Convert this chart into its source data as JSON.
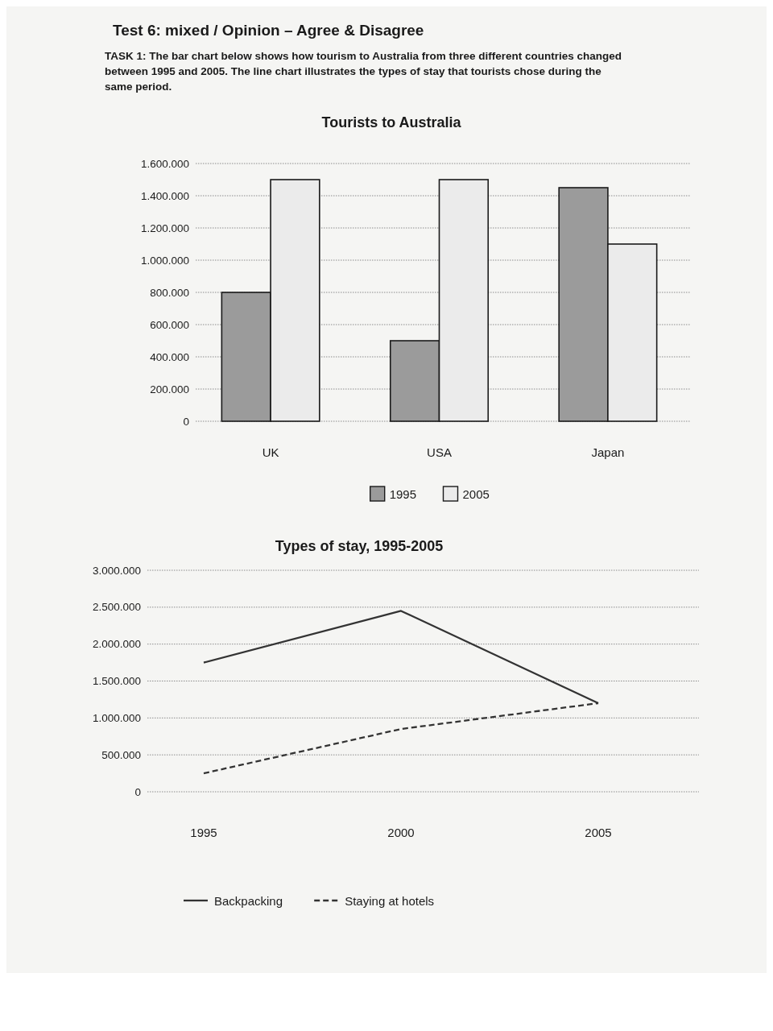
{
  "chart_data": [
    {
      "type": "bar",
      "title": "Tourists to Australia",
      "annotations": [
        "Test 6: mixed / Opinion – Agree & Disagree",
        "TASK 1: The bar chart below shows how tourism to Australia from three different countries changed between 1995 and 2005. The line chart illustrates the types of stay that tourists chose during the same period."
      ],
      "categories": [
        "UK",
        "USA",
        "Japan"
      ],
      "series": [
        {
          "name": "1995",
          "color": "#9b9b9b",
          "values": [
            800000,
            500000,
            1450000
          ]
        },
        {
          "name": "2005",
          "color": "#ebebeb",
          "values": [
            1500000,
            1500000,
            1100000
          ]
        }
      ],
      "ylim": [
        0,
        1600000
      ],
      "yticks": [
        0,
        {
          "value": 200000,
          "label": "200.000"
        },
        {
          "value": 400000,
          "label": "400.000"
        },
        {
          "value": 600000,
          "label": "600.000"
        },
        {
          "value": 800000,
          "label": "800.000"
        },
        {
          "value": 1000000,
          "label": "1.000.000"
        },
        {
          "value": 1200000,
          "label": "1.200.000"
        },
        {
          "value": 1400000,
          "label": "1.400.000"
        },
        {
          "value": 1600000,
          "label": "1.600.000"
        }
      ],
      "grid": "y",
      "legend": "bottom"
    },
    {
      "type": "line",
      "title": "Types of stay, 1995-2005",
      "categories": [
        "1995",
        "2000",
        "2005"
      ],
      "series": [
        {
          "name": "Backpacking",
          "color": "#333333",
          "values": [
            1750000,
            2450000,
            1200000
          ],
          "line_style": "solid"
        },
        {
          "name": "Staying at hotels",
          "color": "#333333",
          "values": [
            250000,
            850000,
            1200000
          ],
          "line_style": "dashed"
        }
      ],
      "ylim": [
        0,
        3000000
      ],
      "yticks": [
        0,
        {
          "value": 500000,
          "label": "500.000"
        },
        {
          "value": 1000000,
          "label": "1.000.000"
        },
        {
          "value": 1500000,
          "label": "1.500.000"
        },
        {
          "value": 2000000,
          "label": "2.000.000"
        },
        {
          "value": 2500000,
          "label": "2.500.000"
        },
        {
          "value": 3000000,
          "label": "3.000.000"
        }
      ],
      "grid": "y",
      "legend": "bottom"
    }
  ]
}
